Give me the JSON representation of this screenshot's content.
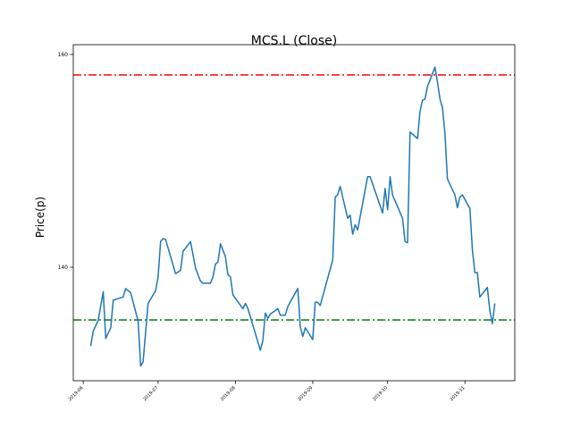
{
  "chart_data": {
    "type": "line",
    "title": "MCS.L (Close)",
    "ylabel": "Price(p)",
    "color": "#1f77b4",
    "x": [
      "2019-06-04",
      "2019-06-05",
      "2019-06-07",
      "2019-06-09",
      "2019-06-10",
      "2019-06-12",
      "2019-06-13",
      "2019-06-17",
      "2019-06-18",
      "2019-06-20",
      "2019-06-23",
      "2019-06-24",
      "2019-06-25",
      "2019-06-27",
      "2019-06-30",
      "2019-07-01",
      "2019-07-02",
      "2019-07-03",
      "2019-07-04",
      "2019-07-08",
      "2019-07-10",
      "2019-07-11",
      "2019-07-14",
      "2019-07-16",
      "2019-07-18",
      "2019-07-19",
      "2019-07-22",
      "2019-07-23",
      "2019-07-24",
      "2019-07-25",
      "2019-07-26",
      "2019-07-28",
      "2019-07-29",
      "2019-07-30",
      "2019-07-31",
      "2019-08-04",
      "2019-08-05",
      "2019-08-06",
      "2019-08-11",
      "2019-08-12",
      "2019-08-13",
      "2019-08-14",
      "2019-08-15",
      "2019-08-18",
      "2019-08-19",
      "2019-08-21",
      "2019-08-22",
      "2019-08-26",
      "2019-08-27",
      "2019-08-28",
      "2019-08-29",
      "2019-09-01",
      "2019-09-02",
      "2019-09-03",
      "2019-09-04",
      "2019-09-09",
      "2019-09-10",
      "2019-09-11",
      "2019-09-12",
      "2019-09-15",
      "2019-09-16",
      "2019-09-17",
      "2019-09-18",
      "2019-09-19",
      "2019-09-23",
      "2019-09-24",
      "2019-09-29",
      "2019-09-30",
      "2019-10-01",
      "2019-10-02",
      "2019-10-03",
      "2019-10-07",
      "2019-10-08",
      "2019-10-09",
      "2019-10-10",
      "2019-10-13",
      "2019-10-14",
      "2019-10-15",
      "2019-10-16",
      "2019-10-17",
      "2019-10-20",
      "2019-10-21",
      "2019-10-22",
      "2019-10-23",
      "2019-10-24",
      "2019-10-25",
      "2019-10-28",
      "2019-10-29",
      "2019-10-30",
      "2019-10-31",
      "2019-11-03",
      "2019-11-04",
      "2019-11-05",
      "2019-11-06",
      "2019-11-07",
      "2019-11-10",
      "2019-11-11",
      "2019-11-12",
      "2019-11-13"
    ],
    "values": [
      132.6,
      134.0,
      135.0,
      137.7,
      133.3,
      134.3,
      136.9,
      137.2,
      138.0,
      137.6,
      134.9,
      130.7,
      131.1,
      136.6,
      137.8,
      139.1,
      142.4,
      142.7,
      142.6,
      139.4,
      139.7,
      141.5,
      142.4,
      139.9,
      138.7,
      138.5,
      138.5,
      139.1,
      140.3,
      140.5,
      142.2,
      141.0,
      139.3,
      139.1,
      137.4,
      136.1,
      136.6,
      136.1,
      132.2,
      133.1,
      135.7,
      135.2,
      135.6,
      136.1,
      135.5,
      135.5,
      136.3,
      138.0,
      134.4,
      133.5,
      134.3,
      133.2,
      136.7,
      136.7,
      136.4,
      140.7,
      146.6,
      146.8,
      147.6,
      144.6,
      144.9,
      143.1,
      144.0,
      143.5,
      148.5,
      148.5,
      145.1,
      147.4,
      145.4,
      148.5,
      146.8,
      144.6,
      142.4,
      142.3,
      152.7,
      152.1,
      154.6,
      155.7,
      155.8,
      157.0,
      158.8,
      157.4,
      155.8,
      155.0,
      152.5,
      148.3,
      146.8,
      145.6,
      146.6,
      146.8,
      145.5,
      141.6,
      139.5,
      139.5,
      137.2,
      138.1,
      135.9,
      134.7,
      136.6
    ],
    "hlines": [
      {
        "value": 158.07,
        "color": "#ff0000"
      },
      {
        "value": 135.04,
        "color": "#008000"
      }
    ],
    "xlim": [
      "2019-05-28",
      "2019-11-21"
    ],
    "xticks": [
      {
        "value": "2019-06-01",
        "label": "2019-06"
      },
      {
        "value": "2019-07-01",
        "label": "2019-07"
      },
      {
        "value": "2019-08-01",
        "label": "2019-08"
      },
      {
        "value": "2019-09-01",
        "label": "2019-09"
      },
      {
        "value": "2019-10-01",
        "label": "2019-10"
      },
      {
        "value": "2019-11-01",
        "label": "2019-11"
      }
    ],
    "ylim": [
      129.33,
      160.92
    ],
    "yticks": [
      140,
      160
    ]
  }
}
